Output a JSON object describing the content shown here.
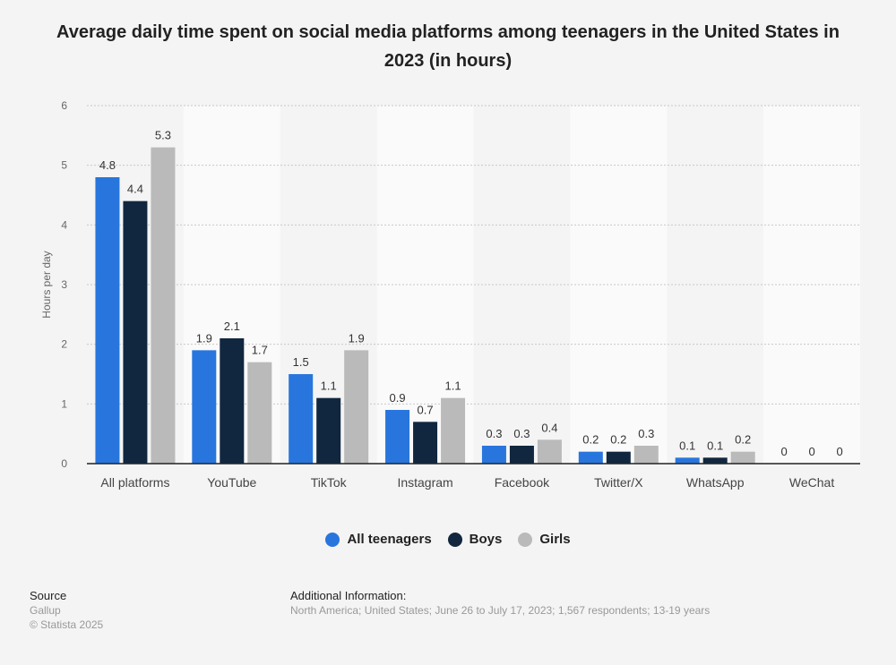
{
  "chart_data": {
    "type": "bar",
    "title": "Average daily time spent on social media platforms among teenagers in the United States in 2023 (in hours)",
    "ylabel": "Hours per day",
    "xlabel": "",
    "ylim": [
      0,
      6
    ],
    "yticks": [
      "0",
      "1",
      "2",
      "3",
      "4",
      "5",
      "6"
    ],
    "grid": true,
    "legend_position": "bottom",
    "categories": [
      "All platforms",
      "YouTube",
      "TikTok",
      "Instagram",
      "Facebook",
      "Twitter/X",
      "WhatsApp",
      "WeChat"
    ],
    "series": [
      {
        "name": "All teenagers",
        "color": "#2876dd",
        "values": [
          4.8,
          1.9,
          1.5,
          0.9,
          0.3,
          0.2,
          0.1,
          0
        ]
      },
      {
        "name": "Boys",
        "color": "#10273f",
        "values": [
          4.4,
          2.1,
          1.1,
          0.7,
          0.3,
          0.2,
          0.1,
          0
        ]
      },
      {
        "name": "Girls",
        "color": "#bababa",
        "values": [
          5.3,
          1.7,
          1.9,
          1.1,
          0.4,
          0.3,
          0.2,
          0
        ]
      }
    ]
  },
  "footer": {
    "source_label": "Source",
    "source": "Gallup",
    "copyright": "© Statista 2025",
    "additional_label": "Additional Information:",
    "additional": "North America; United States; June 26 to July 17, 2023; 1,567 respondents; 13-19 years"
  }
}
